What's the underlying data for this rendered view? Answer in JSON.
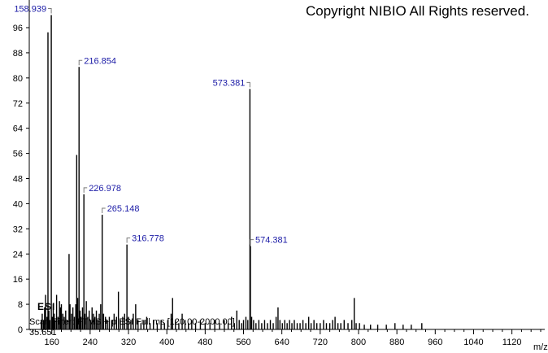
{
  "copyright": "Copyright NIBIO All Rights reserved.",
  "chart_data": {
    "type": "bar",
    "xlabel": "m/z",
    "ylabel": "",
    "xlim": [
      100,
      1200
    ],
    "ylim": [
      0,
      100
    ],
    "x_ticks": [
      "160",
      "240",
      "320",
      "400",
      "480",
      "560",
      "640",
      "720",
      "800",
      "880",
      "960",
      "1040",
      "1120"
    ],
    "y_ticks": [
      "0",
      "8",
      "16",
      "24",
      "32",
      "40",
      "48",
      "56",
      "64",
      "72",
      "80",
      "88",
      "96"
    ],
    "ion_mode": "ESI",
    "scan_filter": "Scan Filter: FTMS + p ESI Full ms [120.00-2000.00]",
    "axis_min_label": "35.651",
    "peak_labels": [
      {
        "mz": 158.939,
        "label": "158.939"
      },
      {
        "mz": 216.854,
        "label": "216.854"
      },
      {
        "mz": 226.978,
        "label": "226.978"
      },
      {
        "mz": 265.148,
        "label": "265.148"
      },
      {
        "mz": 316.778,
        "label": "316.778"
      },
      {
        "mz": 573.381,
        "label": "573.381"
      },
      {
        "mz": 574.381,
        "label": "574.381"
      }
    ],
    "peaks": [
      {
        "mz": 138,
        "y": 3
      },
      {
        "mz": 140,
        "y": 5
      },
      {
        "mz": 143,
        "y": 3
      },
      {
        "mz": 145,
        "y": 7
      },
      {
        "mz": 147,
        "y": 11
      },
      {
        "mz": 150,
        "y": 4
      },
      {
        "mz": 152,
        "y": 94.5
      },
      {
        "mz": 154,
        "y": 6
      },
      {
        "mz": 156,
        "y": 3
      },
      {
        "mz": 158.939,
        "y": 100
      },
      {
        "mz": 161,
        "y": 4
      },
      {
        "mz": 163,
        "y": 8
      },
      {
        "mz": 165,
        "y": 5
      },
      {
        "mz": 167,
        "y": 3
      },
      {
        "mz": 170,
        "y": 11
      },
      {
        "mz": 173,
        "y": 4
      },
      {
        "mz": 176,
        "y": 9
      },
      {
        "mz": 178,
        "y": 7
      },
      {
        "mz": 180,
        "y": 8
      },
      {
        "mz": 183,
        "y": 5
      },
      {
        "mz": 186,
        "y": 4
      },
      {
        "mz": 189,
        "y": 6
      },
      {
        "mz": 192,
        "y": 3
      },
      {
        "mz": 196,
        "y": 24
      },
      {
        "mz": 198,
        "y": 8
      },
      {
        "mz": 201,
        "y": 5
      },
      {
        "mz": 204,
        "y": 7
      },
      {
        "mz": 207,
        "y": 4
      },
      {
        "mz": 210,
        "y": 8
      },
      {
        "mz": 212,
        "y": 55.5
      },
      {
        "mz": 214,
        "y": 10
      },
      {
        "mz": 216.854,
        "y": 83.5
      },
      {
        "mz": 219,
        "y": 6
      },
      {
        "mz": 221,
        "y": 4
      },
      {
        "mz": 224,
        "y": 7
      },
      {
        "mz": 226.978,
        "y": 43
      },
      {
        "mz": 229,
        "y": 5
      },
      {
        "mz": 232,
        "y": 9
      },
      {
        "mz": 235,
        "y": 4
      },
      {
        "mz": 238,
        "y": 6
      },
      {
        "mz": 241,
        "y": 3
      },
      {
        "mz": 244,
        "y": 7
      },
      {
        "mz": 247,
        "y": 5
      },
      {
        "mz": 250,
        "y": 4
      },
      {
        "mz": 253,
        "y": 6
      },
      {
        "mz": 256,
        "y": 3
      },
      {
        "mz": 259,
        "y": 5
      },
      {
        "mz": 262,
        "y": 8
      },
      {
        "mz": 265.148,
        "y": 36.5
      },
      {
        "mz": 268,
        "y": 5
      },
      {
        "mz": 272,
        "y": 4
      },
      {
        "mz": 276,
        "y": 3
      },
      {
        "mz": 280,
        "y": 4
      },
      {
        "mz": 285,
        "y": 3
      },
      {
        "mz": 290,
        "y": 5
      },
      {
        "mz": 295,
        "y": 4
      },
      {
        "mz": 299,
        "y": 12
      },
      {
        "mz": 303,
        "y": 3
      },
      {
        "mz": 308,
        "y": 4
      },
      {
        "mz": 312,
        "y": 5
      },
      {
        "mz": 316.778,
        "y": 27
      },
      {
        "mz": 320,
        "y": 4
      },
      {
        "mz": 325,
        "y": 3
      },
      {
        "mz": 330,
        "y": 5
      },
      {
        "mz": 335,
        "y": 8
      },
      {
        "mz": 340,
        "y": 3
      },
      {
        "mz": 346,
        "y": 2
      },
      {
        "mz": 352,
        "y": 3
      },
      {
        "mz": 358,
        "y": 4
      },
      {
        "mz": 365,
        "y": 2
      },
      {
        "mz": 372,
        "y": 3
      },
      {
        "mz": 380,
        "y": 2
      },
      {
        "mz": 388,
        "y": 3
      },
      {
        "mz": 395,
        "y": 2
      },
      {
        "mz": 402,
        "y": 3
      },
      {
        "mz": 409,
        "y": 5
      },
      {
        "mz": 412,
        "y": 10
      },
      {
        "mz": 418,
        "y": 3
      },
      {
        "mz": 425,
        "y": 2
      },
      {
        "mz": 432,
        "y": 5
      },
      {
        "mz": 438,
        "y": 3
      },
      {
        "mz": 445,
        "y": 2
      },
      {
        "mz": 452,
        "y": 3
      },
      {
        "mz": 460,
        "y": 2
      },
      {
        "mz": 470,
        "y": 3
      },
      {
        "mz": 480,
        "y": 2
      },
      {
        "mz": 490,
        "y": 2
      },
      {
        "mz": 500,
        "y": 3
      },
      {
        "mz": 510,
        "y": 2
      },
      {
        "mz": 520,
        "y": 3
      },
      {
        "mz": 528,
        "y": 2
      },
      {
        "mz": 535,
        "y": 4
      },
      {
        "mz": 541,
        "y": 2
      },
      {
        "mz": 546,
        "y": 6
      },
      {
        "mz": 551,
        "y": 3
      },
      {
        "mz": 556,
        "y": 2
      },
      {
        "mz": 560,
        "y": 3
      },
      {
        "mz": 565,
        "y": 4
      },
      {
        "mz": 569,
        "y": 3
      },
      {
        "mz": 573.381,
        "y": 76.5
      },
      {
        "mz": 574.381,
        "y": 26.5
      },
      {
        "mz": 577,
        "y": 4
      },
      {
        "mz": 581,
        "y": 3
      },
      {
        "mz": 586,
        "y": 2
      },
      {
        "mz": 592,
        "y": 3
      },
      {
        "mz": 598,
        "y": 2
      },
      {
        "mz": 604,
        "y": 3
      },
      {
        "mz": 610,
        "y": 2
      },
      {
        "mz": 616,
        "y": 3
      },
      {
        "mz": 622,
        "y": 2
      },
      {
        "mz": 628,
        "y": 4
      },
      {
        "mz": 632,
        "y": 7
      },
      {
        "mz": 636,
        "y": 3
      },
      {
        "mz": 641,
        "y": 2
      },
      {
        "mz": 646,
        "y": 3
      },
      {
        "mz": 651,
        "y": 2
      },
      {
        "mz": 656,
        "y": 3
      },
      {
        "mz": 661,
        "y": 2
      },
      {
        "mz": 666,
        "y": 3
      },
      {
        "mz": 672,
        "y": 2
      },
      {
        "mz": 678,
        "y": 2
      },
      {
        "mz": 684,
        "y": 3
      },
      {
        "mz": 690,
        "y": 2
      },
      {
        "mz": 696,
        "y": 4
      },
      {
        "mz": 701,
        "y": 2
      },
      {
        "mz": 707,
        "y": 3
      },
      {
        "mz": 713,
        "y": 2
      },
      {
        "mz": 720,
        "y": 2
      },
      {
        "mz": 727,
        "y": 3
      },
      {
        "mz": 733,
        "y": 2
      },
      {
        "mz": 740,
        "y": 2
      },
      {
        "mz": 746,
        "y": 3
      },
      {
        "mz": 751,
        "y": 4
      },
      {
        "mz": 757,
        "y": 2
      },
      {
        "mz": 763,
        "y": 2
      },
      {
        "mz": 770,
        "y": 3
      },
      {
        "mz": 778,
        "y": 2
      },
      {
        "mz": 786,
        "y": 3
      },
      {
        "mz": 791,
        "y": 10
      },
      {
        "mz": 795,
        "y": 2
      },
      {
        "mz": 802,
        "y": 2
      },
      {
        "mz": 812,
        "y": 1.5
      },
      {
        "mz": 825,
        "y": 1.5
      },
      {
        "mz": 840,
        "y": 1.5
      },
      {
        "mz": 858,
        "y": 1.5
      },
      {
        "mz": 876,
        "y": 2
      },
      {
        "mz": 893,
        "y": 1.5
      },
      {
        "mz": 910,
        "y": 1.5
      },
      {
        "mz": 932,
        "y": 2
      }
    ]
  }
}
